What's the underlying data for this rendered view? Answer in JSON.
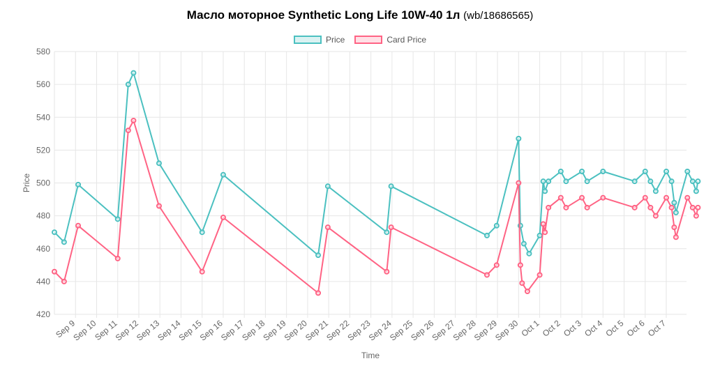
{
  "title": "Масло моторное Synthetic Long Life 10W-40 1л",
  "subtitle": "(wb/18686565)",
  "legend": [
    {
      "label": "Price",
      "stroke": "#4bc0c0",
      "fill": "#dbf2f2"
    },
    {
      "label": "Card Price",
      "stroke": "#ff6384",
      "fill": "#ffe0e6"
    }
  ],
  "chart_data": {
    "type": "line",
    "xlabel": "Time",
    "ylabel": "Price",
    "ylim": [
      420,
      580
    ],
    "yticks": [
      420,
      440,
      460,
      480,
      500,
      520,
      540,
      560,
      580
    ],
    "xlim": [
      "Sep 8 00:00",
      "Oct 7 23:00"
    ],
    "x_ticks": [
      "Sep 9",
      "Sep 10",
      "Sep 11",
      "Sep 12",
      "Sep 13",
      "Sep 14",
      "Sep 15",
      "Sep 16",
      "Sep 17",
      "Sep 18",
      "Sep 19",
      "Sep 20",
      "Sep 21",
      "Sep 22",
      "Sep 23",
      "Sep 24",
      "Sep 25",
      "Sep 26",
      "Sep 27",
      "Sep 28",
      "Sep 29",
      "Sep 30",
      "Oct 1",
      "Oct 2",
      "Oct 3",
      "Oct 4",
      "Oct 5",
      "Oct 6",
      "Oct 7"
    ],
    "grid": true,
    "legend_position": "top",
    "series": [
      {
        "name": "Price",
        "color": "#4bc0c0",
        "points": [
          [
            "Sep 8 00:00",
            470
          ],
          [
            "Sep 8 11:00",
            464
          ],
          [
            "Sep 9 03:00",
            499
          ],
          [
            "Sep 11 00:00",
            478
          ],
          [
            "Sep 11 12:00",
            560
          ],
          [
            "Sep 11 18:00",
            567
          ],
          [
            "Sep 12 23:00",
            512
          ],
          [
            "Sep 15 00:00",
            470
          ],
          [
            "Sep 16 00:00",
            505
          ],
          [
            "Sep 20 12:00",
            456
          ],
          [
            "Sep 20 23:00",
            498
          ],
          [
            "Sep 23 18:00",
            470
          ],
          [
            "Sep 23 23:00",
            498
          ],
          [
            "Sep 28 12:00",
            468
          ],
          [
            "Sep 28 23:00",
            474
          ],
          [
            "Sep 30 00:00",
            527
          ],
          [
            "Sep 30 02:00",
            474
          ],
          [
            "Sep 30 06:00",
            463
          ],
          [
            "Sep 30 12:00",
            457
          ],
          [
            "Oct 1 00:00",
            468
          ],
          [
            "Oct 1 04:00",
            501
          ],
          [
            "Oct 1 06:00",
            495
          ],
          [
            "Oct 1 10:00",
            501
          ],
          [
            "Oct 2 00:00",
            507
          ],
          [
            "Oct 2 06:00",
            501
          ],
          [
            "Oct 3 00:00",
            507
          ],
          [
            "Oct 3 06:00",
            501
          ],
          [
            "Oct 4 00:00",
            507
          ],
          [
            "Oct 5 12:00",
            501
          ],
          [
            "Oct 6 00:00",
            507
          ],
          [
            "Oct 6 06:00",
            501
          ],
          [
            "Oct 6 12:00",
            495
          ],
          [
            "Oct 7 00:00",
            507
          ],
          [
            "Oct 7 06:00",
            501
          ],
          [
            "Oct 7 09:00",
            488
          ],
          [
            "Oct 7 11:00",
            482
          ],
          [
            "Oct 8 00:00",
            507
          ],
          [
            "Oct 8 06:00",
            501
          ],
          [
            "Oct 8 10:00",
            495
          ],
          [
            "Oct 8 12:00",
            501
          ]
        ]
      },
      {
        "name": "Card Price",
        "color": "#ff6384",
        "points": [
          [
            "Sep 8 00:00",
            446
          ],
          [
            "Sep 8 11:00",
            440
          ],
          [
            "Sep 9 03:00",
            474
          ],
          [
            "Sep 11 00:00",
            454
          ],
          [
            "Sep 11 12:00",
            532
          ],
          [
            "Sep 11 18:00",
            538
          ],
          [
            "Sep 12 23:00",
            486
          ],
          [
            "Sep 15 00:00",
            446
          ],
          [
            "Sep 16 00:00",
            479
          ],
          [
            "Sep 20 12:00",
            433
          ],
          [
            "Sep 20 23:00",
            473
          ],
          [
            "Sep 23 18:00",
            446
          ],
          [
            "Sep 23 23:00",
            473
          ],
          [
            "Sep 28 12:00",
            444
          ],
          [
            "Sep 28 23:00",
            450
          ],
          [
            "Sep 30 00:00",
            500
          ],
          [
            "Sep 30 02:00",
            450
          ],
          [
            "Sep 30 04:00",
            439
          ],
          [
            "Sep 30 10:00",
            434
          ],
          [
            "Oct 1 00:00",
            444
          ],
          [
            "Oct 1 04:00",
            475
          ],
          [
            "Oct 1 06:00",
            470
          ],
          [
            "Oct 1 10:00",
            485
          ],
          [
            "Oct 2 00:00",
            491
          ],
          [
            "Oct 2 06:00",
            485
          ],
          [
            "Oct 3 00:00",
            491
          ],
          [
            "Oct 3 06:00",
            485
          ],
          [
            "Oct 4 00:00",
            491
          ],
          [
            "Oct 5 12:00",
            485
          ],
          [
            "Oct 6 00:00",
            491
          ],
          [
            "Oct 6 06:00",
            485
          ],
          [
            "Oct 6 12:00",
            480
          ],
          [
            "Oct 7 00:00",
            491
          ],
          [
            "Oct 7 06:00",
            485
          ],
          [
            "Oct 7 09:00",
            473
          ],
          [
            "Oct 7 11:00",
            467
          ],
          [
            "Oct 8 00:00",
            491
          ],
          [
            "Oct 8 06:00",
            485
          ],
          [
            "Oct 8 10:00",
            480
          ],
          [
            "Oct 8 12:00",
            485
          ]
        ]
      }
    ]
  }
}
